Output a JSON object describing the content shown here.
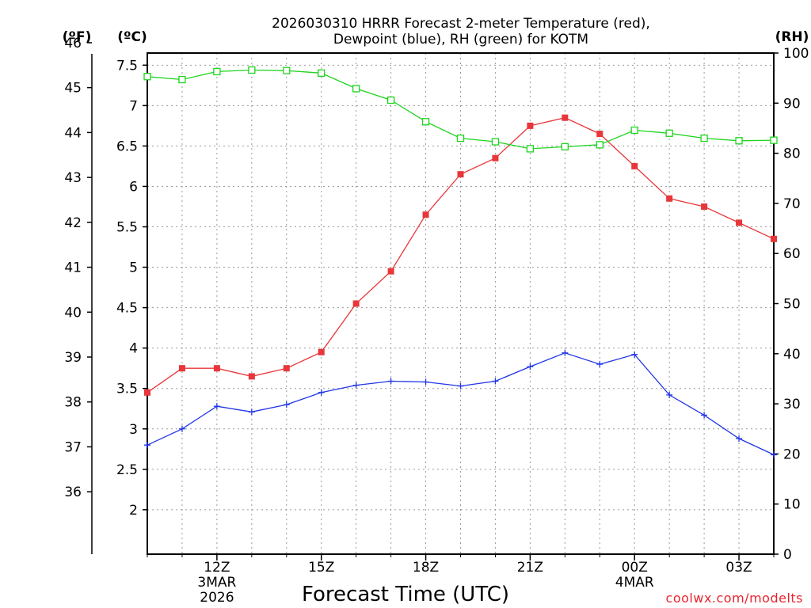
{
  "title_line1": "2026030310 HRRR Forecast 2-meter Temperature (red),",
  "title_line2": "Dewpoint (blue), RH (green) for KOTM",
  "unit_f": "(ºF)",
  "unit_c": "(ºC)",
  "unit_rh": "(RH)",
  "xlabel": "Forecast Time (UTC)",
  "credit": "coolwx.com/modelts",
  "colors": {
    "temperature": "#e8363a",
    "dewpoint": "#2136e6",
    "rh": "#1fd41f"
  },
  "chart_data": {
    "type": "line",
    "x_hours_utc": [
      10,
      11,
      12,
      13,
      14,
      15,
      16,
      17,
      18,
      19,
      20,
      21,
      22,
      23,
      24,
      25,
      26,
      27,
      28
    ],
    "xlim": [
      10,
      28
    ],
    "x_ticks": [
      {
        "hour": 12,
        "labels": [
          "12Z",
          "3MAR",
          "2026"
        ]
      },
      {
        "hour": 15,
        "labels": [
          "15Z"
        ]
      },
      {
        "hour": 18,
        "labels": [
          "18Z"
        ]
      },
      {
        "hour": 21,
        "labels": [
          "21Z"
        ]
      },
      {
        "hour": 24,
        "labels": [
          "00Z",
          "4MAR"
        ]
      },
      {
        "hour": 27,
        "labels": [
          "03Z"
        ]
      }
    ],
    "series": [
      {
        "name": "Temperature",
        "axis": "celsius",
        "marker": "filled-square",
        "values": [
          3.45,
          3.75,
          3.75,
          3.65,
          3.75,
          3.95,
          4.55,
          4.95,
          5.65,
          6.15,
          6.35,
          6.75,
          6.85,
          6.65,
          6.25,
          5.85,
          5.75,
          5.55,
          5.35
        ]
      },
      {
        "name": "Dewpoint",
        "axis": "celsius",
        "marker": "plus",
        "values": [
          2.8,
          3.0,
          3.28,
          3.21,
          3.3,
          3.45,
          3.54,
          3.59,
          3.58,
          3.53,
          3.59,
          3.77,
          3.94,
          3.8,
          3.92,
          3.42,
          3.17,
          2.88,
          2.68
        ]
      },
      {
        "name": "RH",
        "axis": "rh",
        "marker": "open-square",
        "values": [
          95.3,
          94.7,
          96.3,
          96.6,
          96.5,
          96.0,
          92.9,
          90.6,
          86.3,
          83.0,
          82.3,
          80.9,
          81.3,
          81.7,
          84.6,
          84.0,
          83.0,
          82.5,
          82.6
        ]
      }
    ],
    "y_left_celsius": {
      "label": "(ºC)",
      "range": [
        1.45,
        7.65
      ],
      "ticks": [
        "2",
        "2.5",
        "3",
        "3.5",
        "4",
        "4.5",
        "5",
        "5.5",
        "6",
        "6.5",
        "7",
        "7.5"
      ],
      "tick_values": [
        2,
        2.5,
        3,
        3.5,
        4,
        4.5,
        5,
        5.5,
        6,
        6.5,
        7,
        7.5
      ]
    },
    "y_left_fahrenheit": {
      "label": "(ºF)",
      "ticks": [
        "36",
        "37",
        "38",
        "39",
        "40",
        "41",
        "42",
        "43",
        "44",
        "45",
        "46"
      ],
      "tick_values": [
        36,
        37,
        38,
        39,
        40,
        41,
        42,
        43,
        44,
        45,
        46
      ]
    },
    "y_right_rh": {
      "label": "(RH)",
      "range": [
        0,
        100
      ],
      "ticks": [
        "0",
        "10",
        "20",
        "30",
        "40",
        "50",
        "60",
        "70",
        "80",
        "90",
        "100"
      ],
      "tick_values": [
        0,
        10,
        20,
        30,
        40,
        50,
        60,
        70,
        80,
        90,
        100
      ]
    },
    "grid": true
  }
}
